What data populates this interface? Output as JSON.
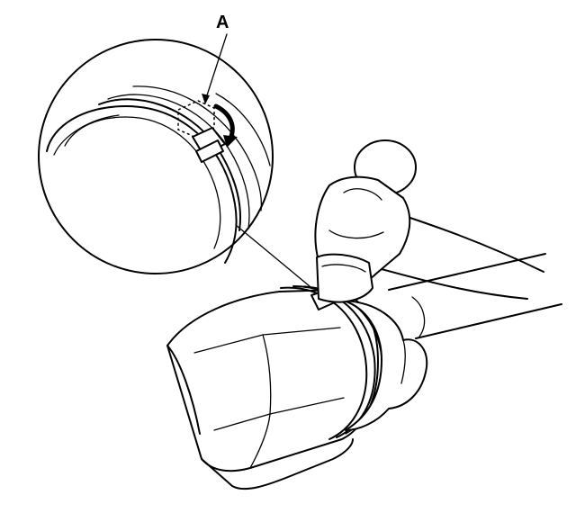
{
  "callout": {
    "label": "A"
  }
}
